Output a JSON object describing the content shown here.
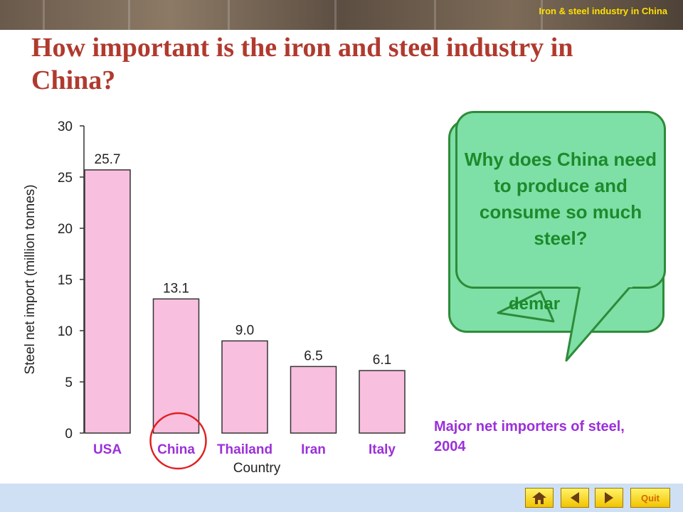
{
  "header": {
    "section_title": "Iron & steel industry in China"
  },
  "page_title": "How important is the iron and steel industry in China?",
  "caption": "Major net importers of steel, 2004",
  "bubble_back": {
    "visible_text": "demar"
  },
  "bubble_front": {
    "question": "Why does China need to produce and consume so much steel?"
  },
  "colors": {
    "bar_fill": "#f9bfdf",
    "category_label": "#9b30d9",
    "highlight_circle": "#e02020",
    "bubble_fill": "#7ee0a6",
    "bubble_border": "#2e8b3a",
    "bubble_text": "#1c8a2c",
    "title": "#b03a2e"
  },
  "footer": {
    "home_icon": "home-icon",
    "back_icon": "triangle-left-icon",
    "next_icon": "triangle-right-icon",
    "quit_label": "Quit"
  },
  "chart_data": {
    "type": "bar",
    "categories": [
      "USA",
      "China",
      "Thailand",
      "Iran",
      "Italy"
    ],
    "values": [
      25.7,
      13.1,
      9.0,
      6.5,
      6.1
    ],
    "value_labels": [
      "25.7",
      "13.1",
      "9.0",
      "6.5",
      "6.1"
    ],
    "xlabel": "Country",
    "ylabel": "Steel net import (million tonnes)",
    "ylim": [
      0,
      30
    ],
    "yticks": [
      0,
      5,
      10,
      15,
      20,
      25,
      30
    ],
    "highlighted_category": "China",
    "grid": false
  }
}
